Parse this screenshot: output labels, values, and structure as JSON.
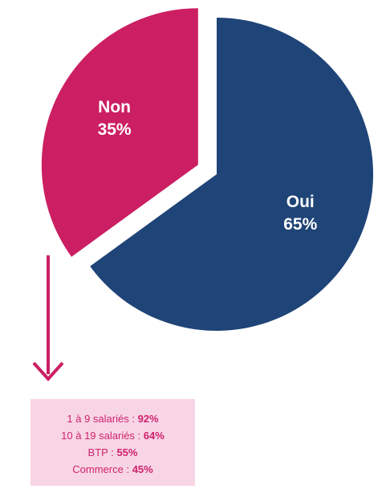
{
  "chart_data": {
    "type": "pie",
    "categories": [
      "Oui",
      "Non"
    ],
    "values": [
      65,
      35
    ],
    "value_labels": [
      "65%",
      "35%"
    ],
    "colors": [
      "#1f4477",
      "#cc1f63"
    ],
    "explode": [
      false,
      true
    ]
  },
  "breakdown": {
    "items": [
      {
        "label": "1 à 9 salariés :",
        "value": "92%"
      },
      {
        "label": "10 à 19 salariés :",
        "value": "64%"
      },
      {
        "label": "BTP :",
        "value": "55%"
      },
      {
        "label": "Commerce :",
        "value": "45%"
      }
    ]
  }
}
